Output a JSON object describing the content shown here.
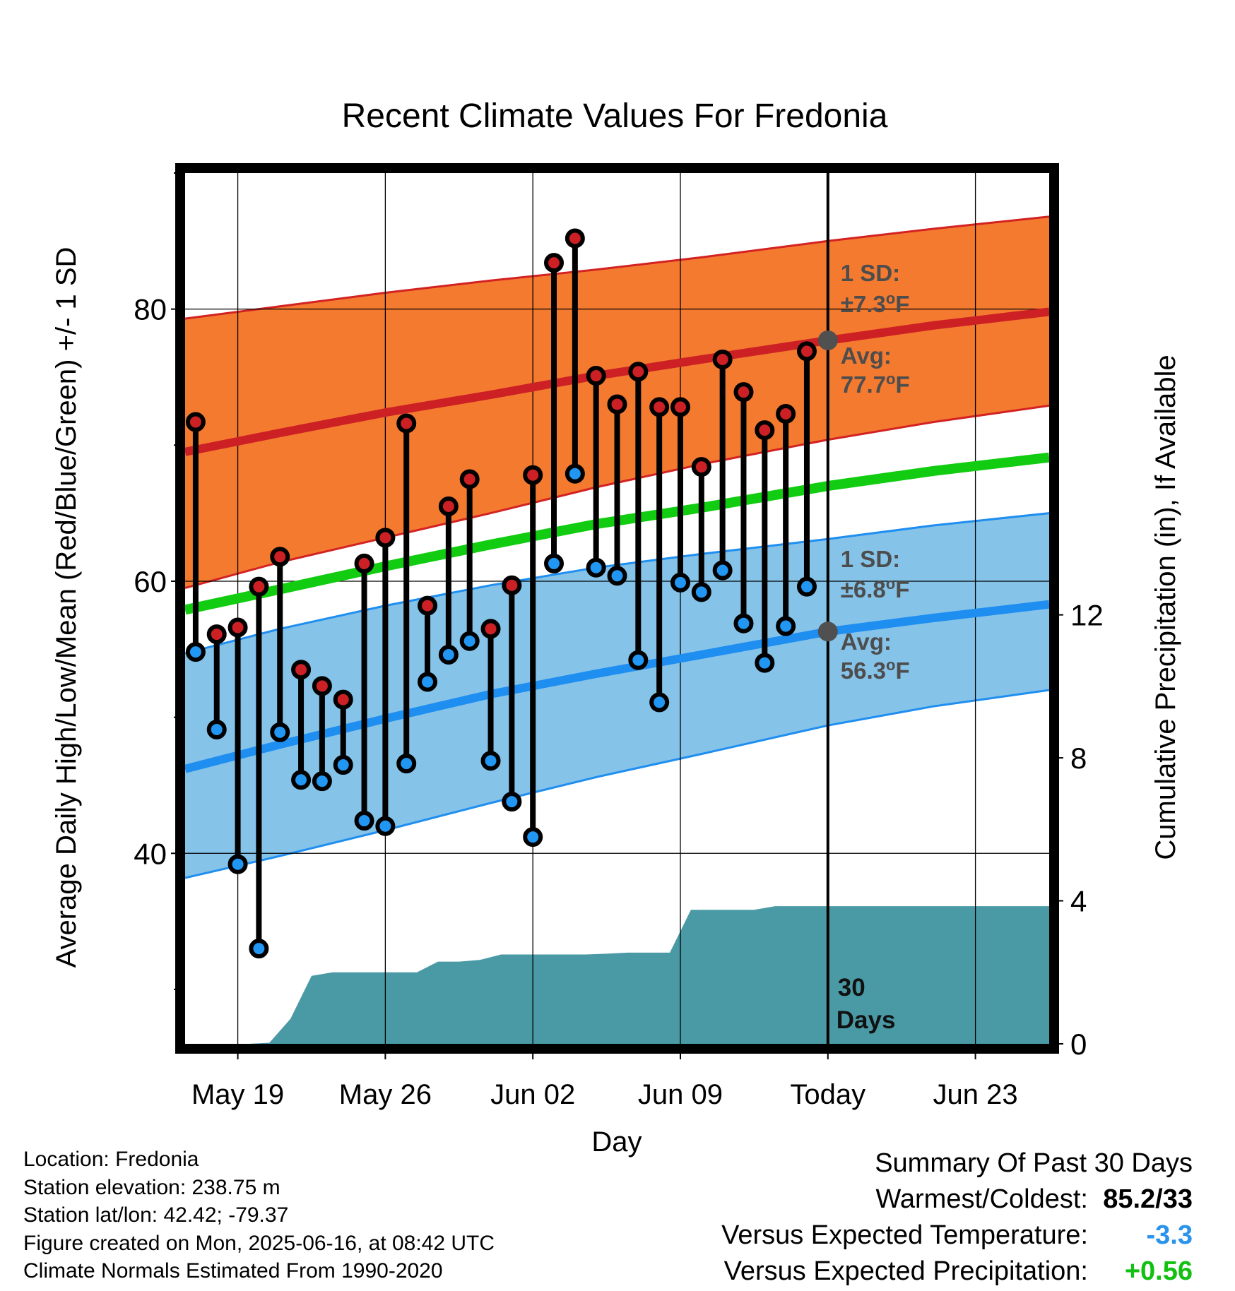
{
  "chart_data": {
    "type": "line",
    "title": "Recent Climate Values For Fredonia",
    "xlabel": "Day",
    "ylabel": "Average Daily High/Low/Mean (Red/Blue/Green) +/- 1 SD",
    "y2label": "Cumulative Precipitation (in), If Available",
    "ylim": [
      26,
      90
    ],
    "y2lim": [
      0,
      24.36
    ],
    "x_start": "May 15",
    "xlim_days": [
      0.5,
      41.5
    ],
    "today_day": 31,
    "x_ticks": [
      {
        "day": 3,
        "label": "May 19"
      },
      {
        "day": 10,
        "label": "May 26"
      },
      {
        "day": 17,
        "label": "Jun 02"
      },
      {
        "day": 24,
        "label": "Jun 09"
      },
      {
        "day": 31,
        "label": "Today"
      },
      {
        "day": 38,
        "label": "Jun 23"
      }
    ],
    "y_ticks": [
      80,
      60,
      40
    ],
    "y_minor_ticks": [
      30,
      50,
      70,
      90
    ],
    "y2_ticks": [
      12,
      8,
      4,
      0
    ],
    "grid": true,
    "normal_high": {
      "x": [
        0.5,
        5,
        10,
        15,
        20,
        25,
        31,
        36,
        41.5
      ],
      "mean": [
        69.5,
        70.9,
        72.4,
        73.7,
        75.1,
        76.3,
        77.7,
        78.8,
        79.8
      ],
      "upper": [
        79.3,
        80.2,
        81.2,
        82.1,
        82.9,
        83.8,
        85.0,
        85.9,
        86.8
      ],
      "lower": [
        59.5,
        61.4,
        63.2,
        65.0,
        66.9,
        68.6,
        70.4,
        71.7,
        72.9
      ]
    },
    "normal_low": {
      "x": [
        0.5,
        5,
        10,
        15,
        20,
        25,
        31,
        36,
        41.5
      ],
      "mean": [
        46.2,
        48.0,
        49.9,
        51.7,
        53.2,
        54.6,
        56.3,
        57.3,
        58.3
      ],
      "upper": [
        54.7,
        56.5,
        58.2,
        59.7,
        61.0,
        62.0,
        63.1,
        64.1,
        65.0
      ],
      "lower": [
        38.2,
        39.8,
        41.7,
        43.7,
        45.6,
        47.3,
        49.4,
        50.8,
        52.0
      ]
    },
    "normal_mean": {
      "x": [
        0.5,
        5,
        10,
        15,
        20,
        25,
        31,
        36,
        41.5
      ],
      "values": [
        57.9,
        59.4,
        61.1,
        62.7,
        64.2,
        65.4,
        67.0,
        68.1,
        69.1
      ]
    },
    "observed": {
      "day": [
        1,
        2,
        3,
        4,
        5,
        6,
        7,
        8,
        9,
        10,
        11,
        12,
        13,
        14,
        15,
        16,
        17,
        18,
        19,
        20,
        21,
        22,
        23,
        24,
        25,
        26,
        27,
        28,
        29,
        30
      ],
      "high": [
        71.7,
        56.1,
        56.6,
        59.6,
        61.8,
        53.5,
        52.3,
        51.3,
        61.3,
        63.2,
        71.6,
        58.2,
        65.5,
        67.5,
        56.5,
        59.7,
        67.8,
        83.4,
        85.2,
        75.1,
        73.0,
        75.4,
        72.8,
        72.8,
        68.4,
        76.3,
        73.9,
        71.1,
        72.3,
        76.9
      ],
      "low": [
        54.8,
        49.1,
        39.2,
        33.0,
        48.9,
        45.4,
        45.3,
        46.5,
        42.4,
        42.0,
        46.6,
        52.6,
        54.6,
        55.6,
        46.8,
        43.8,
        41.2,
        61.3,
        67.9,
        61.0,
        60.4,
        54.2,
        51.1,
        59.9,
        59.2,
        60.8,
        56.9,
        54.0,
        56.7,
        59.6
      ]
    },
    "precip_cumulative": {
      "x": [
        0.5,
        1.5,
        2.5,
        3.5,
        4.5,
        5.5,
        6.5,
        7.5,
        8.5,
        9.5,
        10.5,
        11.5,
        12.5,
        13.5,
        14.5,
        15.5,
        16.5,
        17.5,
        18.5,
        19.5,
        20.5,
        21.5,
        22.5,
        23.5,
        24.5,
        25.5,
        26.5,
        27.5,
        28.5,
        29.5,
        30.5,
        41.5
      ],
      "values": [
        0,
        0,
        0,
        0,
        0.03,
        0.7,
        1.9,
        2.0,
        2.0,
        2.0,
        2.0,
        2.0,
        2.3,
        2.3,
        2.35,
        2.5,
        2.5,
        2.5,
        2.5,
        2.5,
        2.52,
        2.55,
        2.55,
        2.55,
        3.75,
        3.75,
        3.75,
        3.75,
        3.85,
        3.85,
        3.85,
        3.85
      ]
    },
    "annotations": {
      "high_sd_label": "1 SD:",
      "high_sd_value": "±7.3",
      "high_avg_label": "Avg:",
      "high_avg_value": "77.7",
      "low_sd_label": "1 SD:",
      "low_sd_value": "±6.8",
      "low_avg_label": "Avg:",
      "low_avg_value": "56.3",
      "degree_symbol": "o",
      "unit_letter": "F",
      "days_count": "30",
      "days_label": "Days",
      "today_high_avg": 77.7,
      "today_low_avg": 56.3
    }
  },
  "colors": {
    "high_band": "#f47a30",
    "high_band_edge": "#d32222",
    "high_mean_line": "#cc2024",
    "low_band": "#86c3e9",
    "low_band_edge": "#1e8ef0",
    "low_mean_line": "#1e8ef0",
    "mean_line": "#11cc11",
    "precip_fill": "#4a9aa6",
    "high_marker": "#cc2024",
    "low_marker": "#2196f3",
    "annotation_text": "#4d4d4d",
    "anomaly_temp": "#2a93ec",
    "anomaly_precip": "#11c011"
  },
  "metadata": {
    "location": "Location: Fredonia",
    "elevation": "Station elevation: 238.75 m",
    "latlon": "Station lat/lon: 42.42; -79.37",
    "created": "Figure created on Mon, 2025-06-16, at 08:42 UTC",
    "normals": "Climate Normals Estimated From 1990-2020"
  },
  "summary": {
    "title": "Summary Of Past 30 Days",
    "warmest_label": "Warmest/Coldest:",
    "warmest_value": "85.2/33",
    "temp_label": "Versus Expected Temperature:",
    "temp_value": "-3.3",
    "precip_label": "Versus Expected Precipitation:",
    "precip_value": "+0.56"
  }
}
